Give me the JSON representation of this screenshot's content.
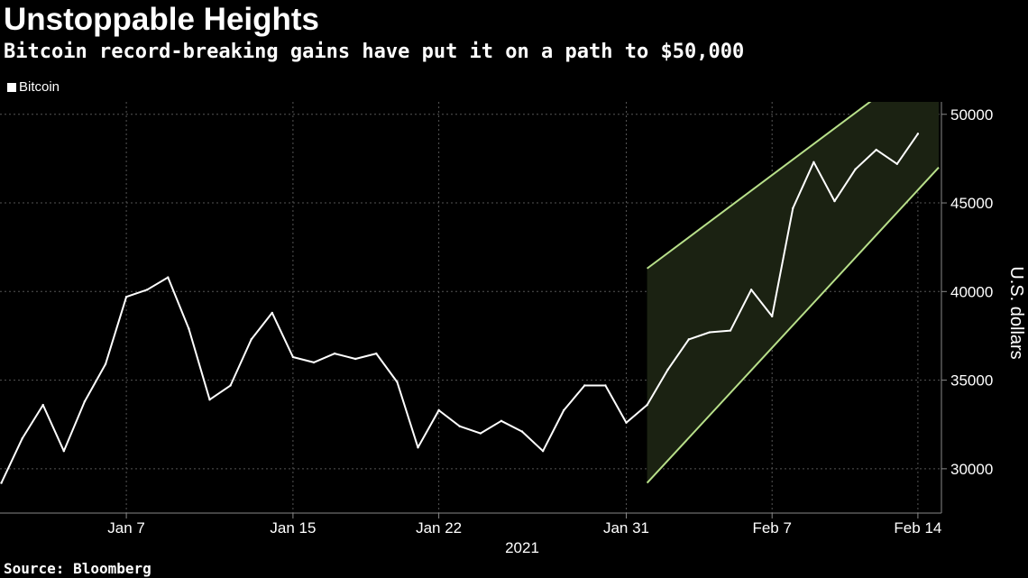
{
  "title": "Unstoppable Heights",
  "subtitle": "Bitcoin record-breaking gains have put it on a path to $50,000",
  "source": "Source: Bloomberg",
  "colors": {
    "background": "#000000",
    "line": "#ffffff",
    "channel_line": "#b8e08a",
    "channel_fill": "#1b2212",
    "grid": "#555555"
  },
  "chart_data": {
    "type": "line",
    "ylabel": "U.S. dollars",
    "ylim": [
      27500,
      50700
    ],
    "y_ticks": [
      {
        "value": 30000,
        "label": "30000"
      },
      {
        "value": 35000,
        "label": "35000"
      },
      {
        "value": 40000,
        "label": "40000"
      },
      {
        "value": 45000,
        "label": "45000"
      },
      {
        "value": 50000,
        "label": "50000"
      }
    ],
    "x_range": [
      "2021-01-01",
      "2021-02-15"
    ],
    "x_ticks": [
      {
        "date": "2021-01-07",
        "label": "Jan 7"
      },
      {
        "date": "2021-01-15",
        "label": "Jan 15"
      },
      {
        "date": "2021-01-22",
        "label": "Jan 22"
      },
      {
        "date": "2021-01-31",
        "label": "Jan 31"
      },
      {
        "date": "2021-02-07",
        "label": "Feb 7"
      },
      {
        "date": "2021-02-14",
        "label": "Feb 14"
      }
    ],
    "x_year_label": "2021",
    "grid": true,
    "legend_position": "top-left",
    "series": [
      {
        "name": "Bitcoin",
        "x": [
          "2021-01-01",
          "2021-01-02",
          "2021-01-03",
          "2021-01-04",
          "2021-01-05",
          "2021-01-06",
          "2021-01-07",
          "2021-01-08",
          "2021-01-09",
          "2021-01-10",
          "2021-01-11",
          "2021-01-12",
          "2021-01-13",
          "2021-01-14",
          "2021-01-15",
          "2021-01-16",
          "2021-01-17",
          "2021-01-18",
          "2021-01-19",
          "2021-01-20",
          "2021-01-21",
          "2021-01-22",
          "2021-01-23",
          "2021-01-24",
          "2021-01-25",
          "2021-01-26",
          "2021-01-27",
          "2021-01-28",
          "2021-01-29",
          "2021-01-30",
          "2021-01-31",
          "2021-02-01",
          "2021-02-02",
          "2021-02-03",
          "2021-02-04",
          "2021-02-05",
          "2021-02-06",
          "2021-02-07",
          "2021-02-08",
          "2021-02-09",
          "2021-02-10",
          "2021-02-11",
          "2021-02-12",
          "2021-02-13",
          "2021-02-14"
        ],
        "values": [
          29200,
          31700,
          33600,
          31000,
          33800,
          35900,
          39700,
          40100,
          40800,
          37900,
          33900,
          34700,
          37300,
          38800,
          36300,
          36000,
          36500,
          36200,
          36500,
          34900,
          31200,
          33300,
          32400,
          32000,
          32700,
          32100,
          31000,
          33300,
          34700,
          34700,
          32600,
          33600,
          35600,
          37300,
          37700,
          37800,
          40100,
          38600,
          44700,
          47300,
          45100,
          46900,
          48000,
          47200,
          48900
        ]
      }
    ],
    "channel": {
      "start": "2021-02-01",
      "end": "2021-02-15",
      "upper": [
        41300,
        53600
      ],
      "lower": [
        29200,
        47000
      ]
    }
  }
}
